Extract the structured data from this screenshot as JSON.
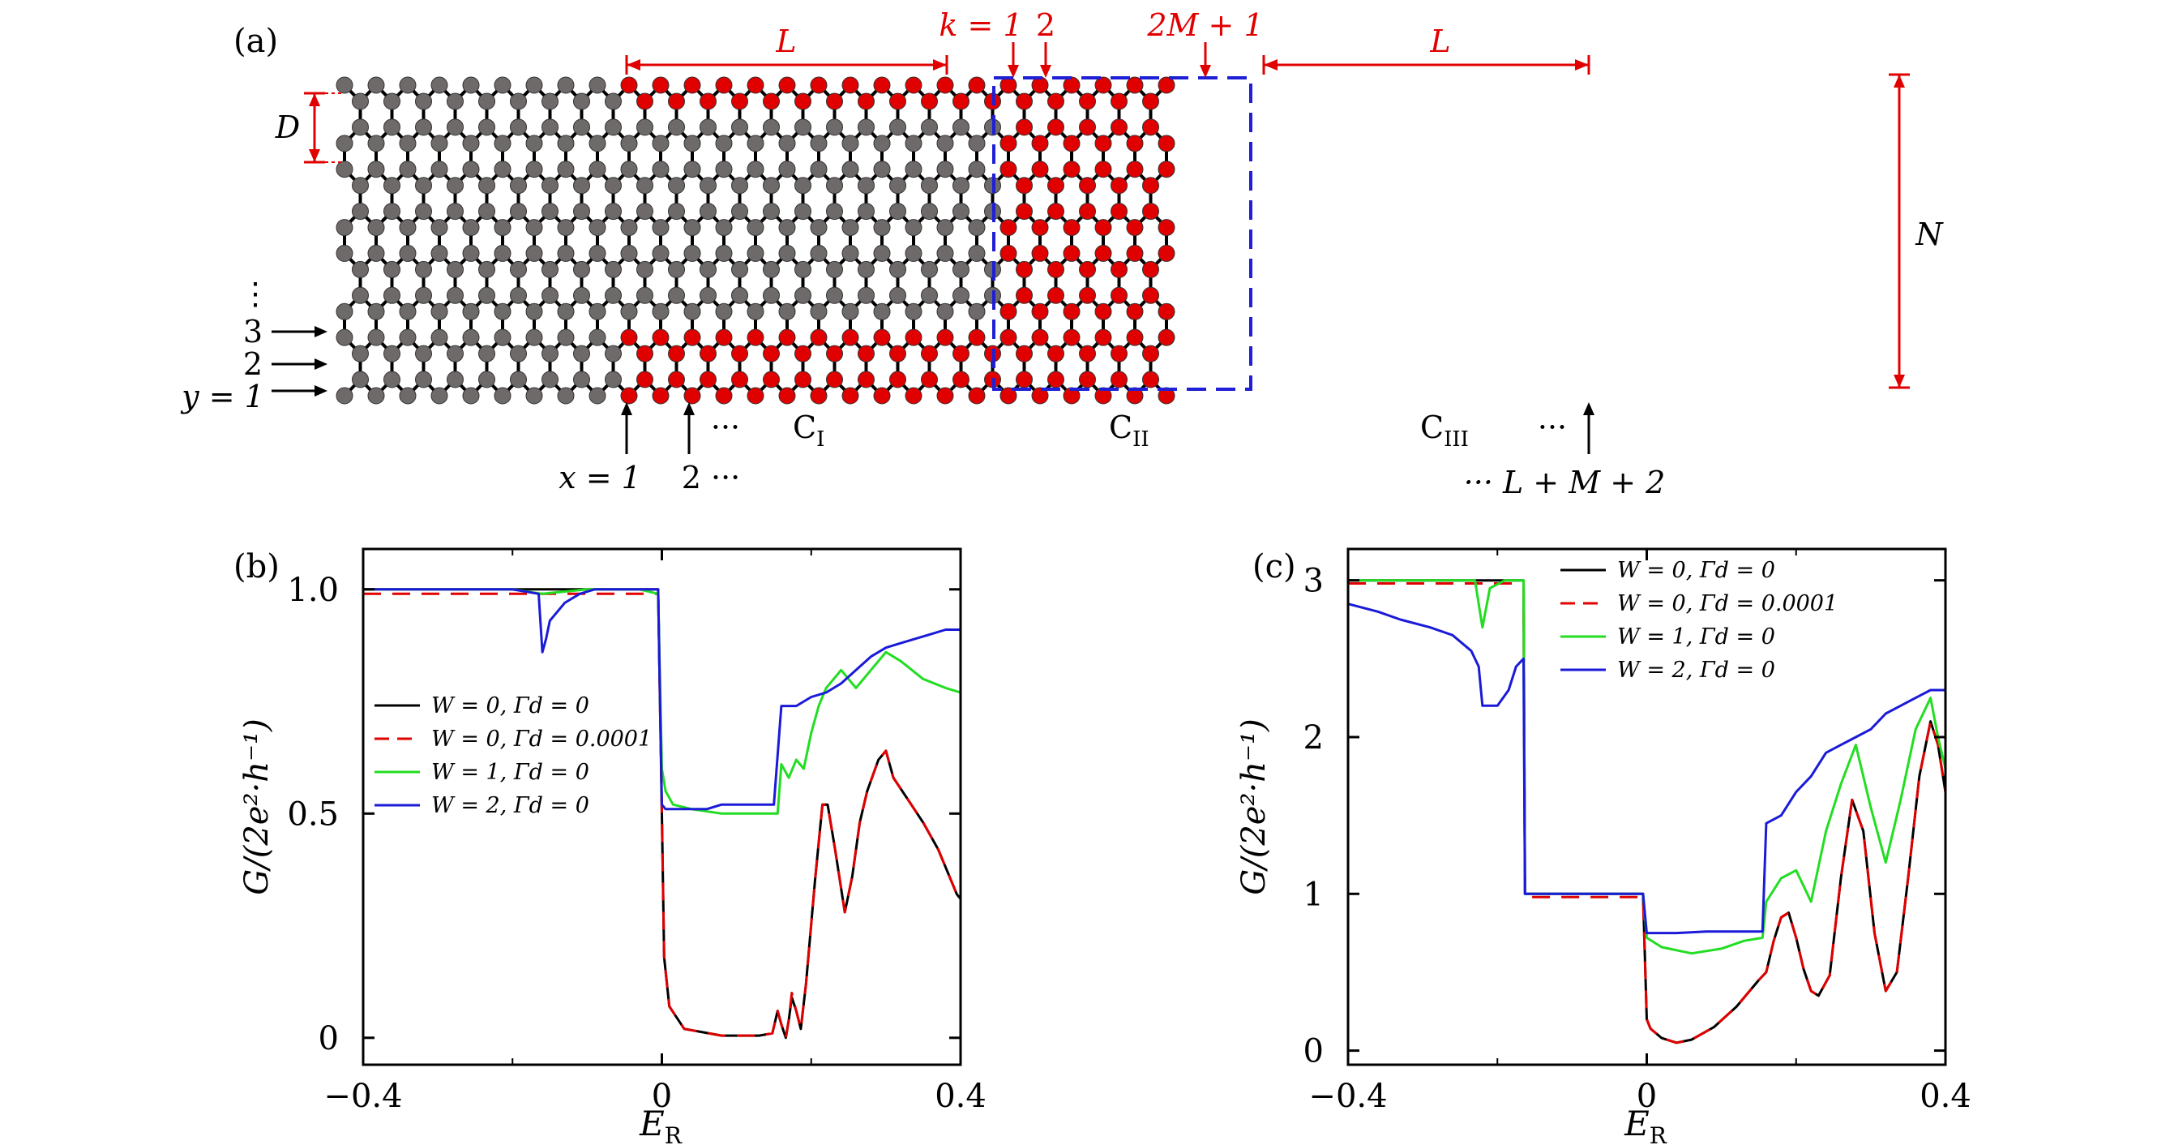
{
  "colors": {
    "red": "#e10000",
    "gray_atom": "#6e6a6a",
    "bond": "#000000",
    "dash_box": "#1f1fd6",
    "series_black": "#000000",
    "series_red": "#e10000",
    "series_green": "#22dd22",
    "series_blue": "#1a1ad8"
  },
  "panel_a": {
    "tag": "(a)",
    "labels": {
      "L_left": "L",
      "L_right": "L",
      "k1": "k = 1",
      "k2": "2",
      "k2M1": "2M + 1",
      "D": "D",
      "N": "N",
      "y_dots": "⋮",
      "y3": "3",
      "y2": "2",
      "y1": "y = 1",
      "x1": "x = 1",
      "x2": "2 ···",
      "x_dots": "···",
      "xr_dots": "···",
      "xlast": "··· L + M + 2",
      "C1": "C",
      "C1_sub": "I",
      "C2": "C",
      "C2_sub": "II",
      "C3": "C",
      "C3_sub": "III"
    }
  },
  "chart_data": [
    {
      "id": "b",
      "tag": "(b)",
      "type": "line",
      "xlabel": "E",
      "xlabel_sub": "R",
      "ylabel": "G/(2e²·h⁻¹)",
      "xlim": [
        -0.4,
        0.4
      ],
      "ylim": [
        -0.06,
        1.09
      ],
      "xticks": [
        -0.4,
        0,
        0.4
      ],
      "xtick_labels": [
        "−0.4",
        "0",
        "0.4"
      ],
      "yticks": [
        0,
        0.5,
        1.0
      ],
      "ytick_labels": [
        "0",
        "0.5",
        "1.0"
      ],
      "legend": [
        "W = 0,  Γd = 0",
        "W = 0,  Γd = 0.0001",
        "W = 1,  Γd = 0",
        "W = 2,  Γd = 0"
      ],
      "series": [
        {
          "name": "W = 0, Γd = 0",
          "color": "#000000",
          "dash": false,
          "x": [
            -0.4,
            -0.005,
            0.0,
            0.003,
            0.01,
            0.03,
            0.08,
            0.13,
            0.148,
            0.155,
            0.16,
            0.166,
            0.17,
            0.174,
            0.18,
            0.186,
            0.193,
            0.205,
            0.215,
            0.222,
            0.232,
            0.245,
            0.255,
            0.265,
            0.275,
            0.29,
            0.3,
            0.31,
            0.33,
            0.35,
            0.37,
            0.385,
            0.395,
            0.4
          ],
          "values": [
            1.0,
            1.0,
            0.5,
            0.18,
            0.07,
            0.02,
            0.005,
            0.005,
            0.01,
            0.06,
            0.03,
            0.0,
            0.04,
            0.09,
            0.06,
            0.02,
            0.12,
            0.35,
            0.52,
            0.52,
            0.42,
            0.28,
            0.36,
            0.48,
            0.55,
            0.62,
            0.64,
            0.58,
            0.53,
            0.48,
            0.42,
            0.36,
            0.32,
            0.31
          ]
        },
        {
          "name": "W = 0, Γd = 0.0001",
          "color": "#e10000",
          "dash": true,
          "x": [
            -0.4,
            -0.005,
            0.0,
            0.003,
            0.01,
            0.03,
            0.08,
            0.13,
            0.148,
            0.155,
            0.16,
            0.166,
            0.17,
            0.174,
            0.18,
            0.186,
            0.193,
            0.205,
            0.215,
            0.222,
            0.232,
            0.245,
            0.255,
            0.265,
            0.275,
            0.29,
            0.3,
            0.31,
            0.33,
            0.35,
            0.37,
            0.385,
            0.395,
            0.4
          ],
          "values": [
            0.99,
            0.99,
            0.5,
            0.18,
            0.07,
            0.02,
            0.005,
            0.005,
            0.01,
            0.06,
            0.03,
            0.0,
            0.04,
            0.1,
            0.06,
            0.02,
            0.12,
            0.35,
            0.52,
            0.52,
            0.42,
            0.28,
            0.36,
            0.48,
            0.55,
            0.62,
            0.64,
            0.58,
            0.53,
            0.48,
            0.42,
            0.36,
            0.32,
            0.31
          ]
        },
        {
          "name": "W = 1, Γd = 0",
          "color": "#22dd22",
          "dash": false,
          "x": [
            -0.4,
            -0.2,
            -0.16,
            -0.1,
            -0.03,
            -0.005,
            0.0,
            0.005,
            0.015,
            0.04,
            0.08,
            0.12,
            0.155,
            0.16,
            0.17,
            0.18,
            0.19,
            0.2,
            0.21,
            0.22,
            0.23,
            0.24,
            0.26,
            0.28,
            0.3,
            0.32,
            0.35,
            0.38,
            0.4
          ],
          "values": [
            1.0,
            1.0,
            0.99,
            1.0,
            1.0,
            0.99,
            0.6,
            0.55,
            0.52,
            0.51,
            0.5,
            0.5,
            0.5,
            0.61,
            0.58,
            0.62,
            0.6,
            0.68,
            0.74,
            0.78,
            0.8,
            0.82,
            0.78,
            0.82,
            0.86,
            0.84,
            0.8,
            0.78,
            0.77
          ]
        },
        {
          "name": "W = 2, Γd = 0",
          "color": "#1a1ad8",
          "dash": false,
          "x": [
            -0.4,
            -0.2,
            -0.165,
            -0.16,
            -0.155,
            -0.15,
            -0.13,
            -0.11,
            -0.09,
            -0.06,
            -0.03,
            -0.005,
            0.0,
            0.005,
            0.02,
            0.04,
            0.06,
            0.08,
            0.1,
            0.12,
            0.15,
            0.16,
            0.18,
            0.2,
            0.22,
            0.24,
            0.26,
            0.28,
            0.3,
            0.32,
            0.34,
            0.36,
            0.38,
            0.4
          ],
          "values": [
            1.0,
            1.0,
            0.99,
            0.86,
            0.89,
            0.93,
            0.97,
            0.99,
            1.0,
            1.0,
            1.0,
            1.0,
            0.52,
            0.51,
            0.51,
            0.51,
            0.51,
            0.52,
            0.52,
            0.52,
            0.52,
            0.74,
            0.74,
            0.76,
            0.77,
            0.79,
            0.82,
            0.85,
            0.87,
            0.88,
            0.89,
            0.9,
            0.91,
            0.91
          ]
        }
      ]
    },
    {
      "id": "c",
      "tag": "(c)",
      "type": "line",
      "xlabel": "E",
      "xlabel_sub": "R",
      "ylabel": "G/(2e²·h⁻¹)",
      "xlim": [
        -0.4,
        0.4
      ],
      "ylim": [
        -0.09,
        3.2
      ],
      "xticks": [
        -0.4,
        0,
        0.4
      ],
      "xtick_labels": [
        "−0.4",
        "0",
        "0.4"
      ],
      "yticks": [
        0,
        1,
        2,
        3
      ],
      "ytick_labels": [
        "0",
        "1",
        "2",
        "3"
      ],
      "legend": [
        "W = 0,  Γd = 0",
        "W = 0,  Γd = 0.0001",
        "W = 1,  Γd = 0",
        "W = 2,  Γd = 0"
      ],
      "series": [
        {
          "name": "W = 0, Γd = 0",
          "color": "#000000",
          "dash": false,
          "x": [
            -0.4,
            -0.165,
            -0.163,
            -0.12,
            -0.005,
            0.0,
            0.005,
            0.02,
            0.04,
            0.06,
            0.09,
            0.12,
            0.15,
            0.16,
            0.17,
            0.18,
            0.19,
            0.2,
            0.21,
            0.22,
            0.23,
            0.245,
            0.26,
            0.275,
            0.29,
            0.305,
            0.32,
            0.335,
            0.35,
            0.365,
            0.38,
            0.39,
            0.4
          ],
          "values": [
            3.0,
            3.0,
            1.0,
            1.0,
            1.0,
            0.2,
            0.14,
            0.08,
            0.05,
            0.07,
            0.15,
            0.28,
            0.45,
            0.5,
            0.7,
            0.85,
            0.88,
            0.72,
            0.52,
            0.38,
            0.35,
            0.48,
            1.1,
            1.6,
            1.4,
            0.75,
            0.38,
            0.5,
            1.1,
            1.75,
            2.1,
            1.95,
            1.65
          ]
        },
        {
          "name": "W = 0, Γd = 0.0001",
          "color": "#e10000",
          "dash": true,
          "x": [
            -0.4,
            -0.165,
            -0.163,
            -0.12,
            -0.005,
            0.0,
            0.005,
            0.02,
            0.04,
            0.06,
            0.09,
            0.12,
            0.15,
            0.16,
            0.17,
            0.18,
            0.19,
            0.2,
            0.21,
            0.22,
            0.23,
            0.245,
            0.26,
            0.275,
            0.29,
            0.305,
            0.32,
            0.335,
            0.35,
            0.365,
            0.38,
            0.39,
            0.4
          ],
          "values": [
            2.98,
            2.98,
            0.98,
            0.98,
            0.98,
            0.2,
            0.14,
            0.08,
            0.05,
            0.07,
            0.15,
            0.28,
            0.45,
            0.5,
            0.7,
            0.85,
            0.88,
            0.72,
            0.52,
            0.38,
            0.35,
            0.48,
            1.1,
            1.6,
            1.4,
            0.75,
            0.38,
            0.5,
            1.1,
            1.75,
            2.1,
            1.95,
            1.65
          ]
        },
        {
          "name": "W = 1, Γd = 0",
          "color": "#22dd22",
          "dash": false,
          "x": [
            -0.4,
            -0.23,
            -0.22,
            -0.21,
            -0.19,
            -0.165,
            -0.163,
            -0.12,
            -0.005,
            0.0,
            0.02,
            0.06,
            0.1,
            0.13,
            0.155,
            0.16,
            0.18,
            0.2,
            0.22,
            0.24,
            0.26,
            0.28,
            0.3,
            0.32,
            0.34,
            0.36,
            0.38,
            0.39,
            0.4
          ],
          "values": [
            3.0,
            3.0,
            2.7,
            2.95,
            3.0,
            3.0,
            1.0,
            1.0,
            1.0,
            0.72,
            0.66,
            0.62,
            0.65,
            0.7,
            0.72,
            0.95,
            1.1,
            1.15,
            0.95,
            1.4,
            1.7,
            1.95,
            1.55,
            1.2,
            1.6,
            2.05,
            2.25,
            2.0,
            1.8
          ]
        },
        {
          "name": "W = 2, Γd = 0",
          "color": "#1a1ad8",
          "dash": false,
          "x": [
            -0.4,
            -0.36,
            -0.33,
            -0.29,
            -0.26,
            -0.235,
            -0.225,
            -0.22,
            -0.2,
            -0.185,
            -0.175,
            -0.165,
            -0.163,
            -0.12,
            -0.005,
            0.0,
            0.04,
            0.08,
            0.12,
            0.155,
            0.16,
            0.18,
            0.2,
            0.22,
            0.24,
            0.26,
            0.28,
            0.3,
            0.32,
            0.34,
            0.36,
            0.38,
            0.4
          ],
          "values": [
            2.85,
            2.8,
            2.75,
            2.7,
            2.65,
            2.55,
            2.45,
            2.2,
            2.2,
            2.3,
            2.45,
            2.5,
            1.0,
            1.0,
            1.0,
            0.75,
            0.75,
            0.76,
            0.76,
            0.76,
            1.45,
            1.5,
            1.65,
            1.75,
            1.9,
            1.95,
            2.0,
            2.05,
            2.15,
            2.2,
            2.25,
            2.3,
            2.3
          ]
        }
      ]
    }
  ]
}
